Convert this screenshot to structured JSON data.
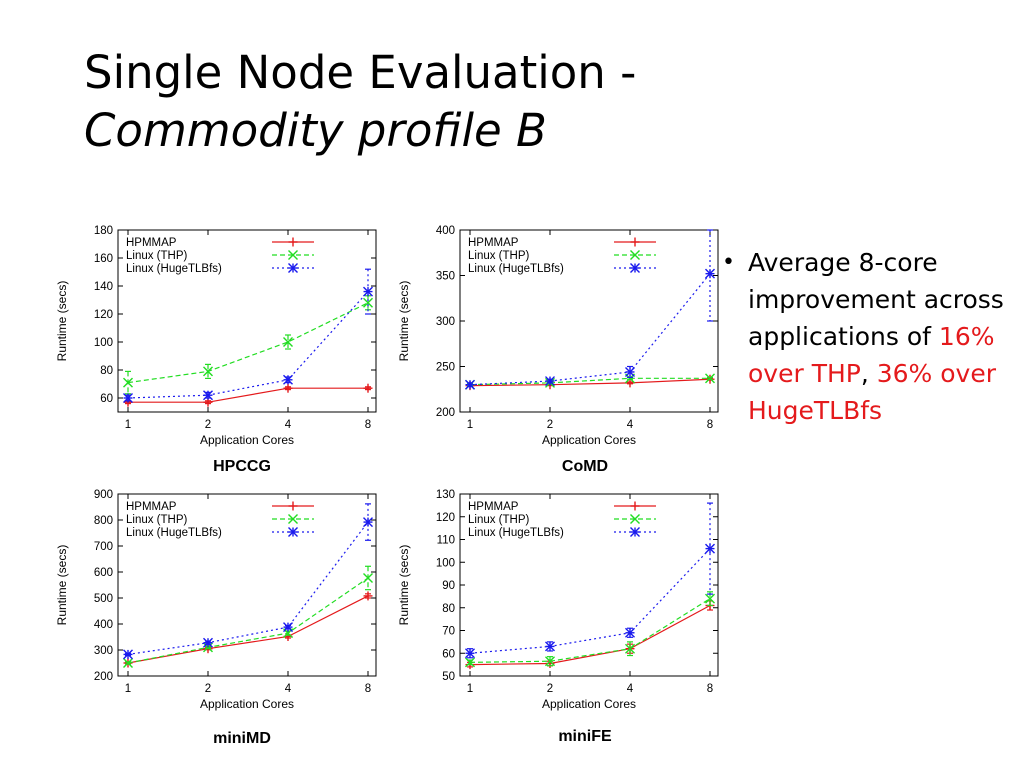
{
  "slide": {
    "title_line1": "Single Node Evaluation -",
    "title_line2": "Commodity profile B"
  },
  "bullet": {
    "mark": "•",
    "text_part1": "Average 8-core improvement across applications of ",
    "highlight1": "16% over THP",
    "text_part2": ",",
    "highlight2": "36% over HugeTLBfs"
  },
  "colors": {
    "hpmmap": "#e41a1c",
    "thp": "#22dd22",
    "hugetlbfs": "#1a1aee"
  },
  "chart_data": [
    {
      "type": "line",
      "caption": "HPCCG",
      "xlabel": "Application Cores",
      "ylabel": "Runtime (secs)",
      "x": [
        1,
        2,
        4,
        8
      ],
      "xticks": [
        "1",
        "2",
        "4",
        "8"
      ],
      "ylim": [
        50,
        180
      ],
      "yticks": [
        60,
        80,
        100,
        120,
        140,
        160,
        180
      ],
      "legend_position": "top-left",
      "series": [
        {
          "name": "HPMMAP",
          "values": [
            57,
            57,
            67,
            67
          ],
          "err": [
            1,
            1,
            1,
            1
          ]
        },
        {
          "name": "Linux (THP)",
          "values": [
            71,
            79,
            100,
            128
          ],
          "err": [
            8,
            5,
            5,
            5
          ]
        },
        {
          "name": "Linux (HugeTLBfs)",
          "values": [
            60,
            62,
            73,
            136
          ],
          "err": [
            2,
            2,
            2,
            16
          ]
        }
      ]
    },
    {
      "type": "line",
      "caption": "CoMD",
      "xlabel": "Application Cores",
      "ylabel": "Runtime (secs)",
      "x": [
        1,
        2,
        4,
        8
      ],
      "xticks": [
        "1",
        "2",
        "4",
        "8"
      ],
      "ylim": [
        200,
        400
      ],
      "yticks": [
        200,
        250,
        300,
        350,
        400
      ],
      "legend_position": "top-left",
      "series": [
        {
          "name": "HPMMAP",
          "values": [
            229,
            230,
            232,
            236
          ],
          "err": [
            1,
            1,
            1,
            1
          ]
        },
        {
          "name": "Linux (THP)",
          "values": [
            230,
            232,
            237,
            237
          ],
          "err": [
            1,
            1,
            1,
            1
          ]
        },
        {
          "name": "Linux (HugeTLBfs)",
          "values": [
            230,
            234,
            244,
            352
          ],
          "err": [
            2,
            2,
            6,
            52
          ]
        }
      ]
    },
    {
      "type": "line",
      "caption": "miniMD",
      "xlabel": "Application Cores",
      "ylabel": "Runtime (secs)",
      "x": [
        1,
        2,
        4,
        8
      ],
      "xticks": [
        "1",
        "2",
        "4",
        "8"
      ],
      "ylim": [
        200,
        900
      ],
      "yticks": [
        200,
        300,
        400,
        500,
        600,
        700,
        800,
        900
      ],
      "legend_position": "top-left",
      "series": [
        {
          "name": "HPMMAP",
          "values": [
            250,
            305,
            352,
            508
          ],
          "err": [
            4,
            4,
            6,
            8
          ]
        },
        {
          "name": "Linux (THP)",
          "values": [
            250,
            310,
            365,
            577
          ],
          "err": [
            4,
            4,
            8,
            45
          ]
        },
        {
          "name": "Linux (HugeTLBfs)",
          "values": [
            283,
            328,
            388,
            792
          ],
          "err": [
            4,
            6,
            6,
            70
          ]
        }
      ]
    },
    {
      "type": "line",
      "caption": "miniFE",
      "xlabel": "Application Cores",
      "ylabel": "Runtime (secs)",
      "x": [
        1,
        2,
        4,
        8
      ],
      "xticks": [
        "1",
        "2",
        "4",
        "8"
      ],
      "ylim": [
        50,
        130
      ],
      "yticks": [
        50,
        60,
        70,
        80,
        90,
        100,
        110,
        120,
        130
      ],
      "legend_position": "top-left",
      "series": [
        {
          "name": "HPMMAP",
          "values": [
            55,
            55.5,
            62,
            81
          ],
          "err": [
            1,
            1,
            2,
            2
          ]
        },
        {
          "name": "Linux (THP)",
          "values": [
            56,
            56.5,
            62,
            84
          ],
          "err": [
            1,
            2,
            3,
            3
          ]
        },
        {
          "name": "Linux (HugeTLBfs)",
          "values": [
            60,
            63,
            69,
            106
          ],
          "err": [
            2,
            2,
            2,
            20
          ]
        }
      ]
    }
  ]
}
